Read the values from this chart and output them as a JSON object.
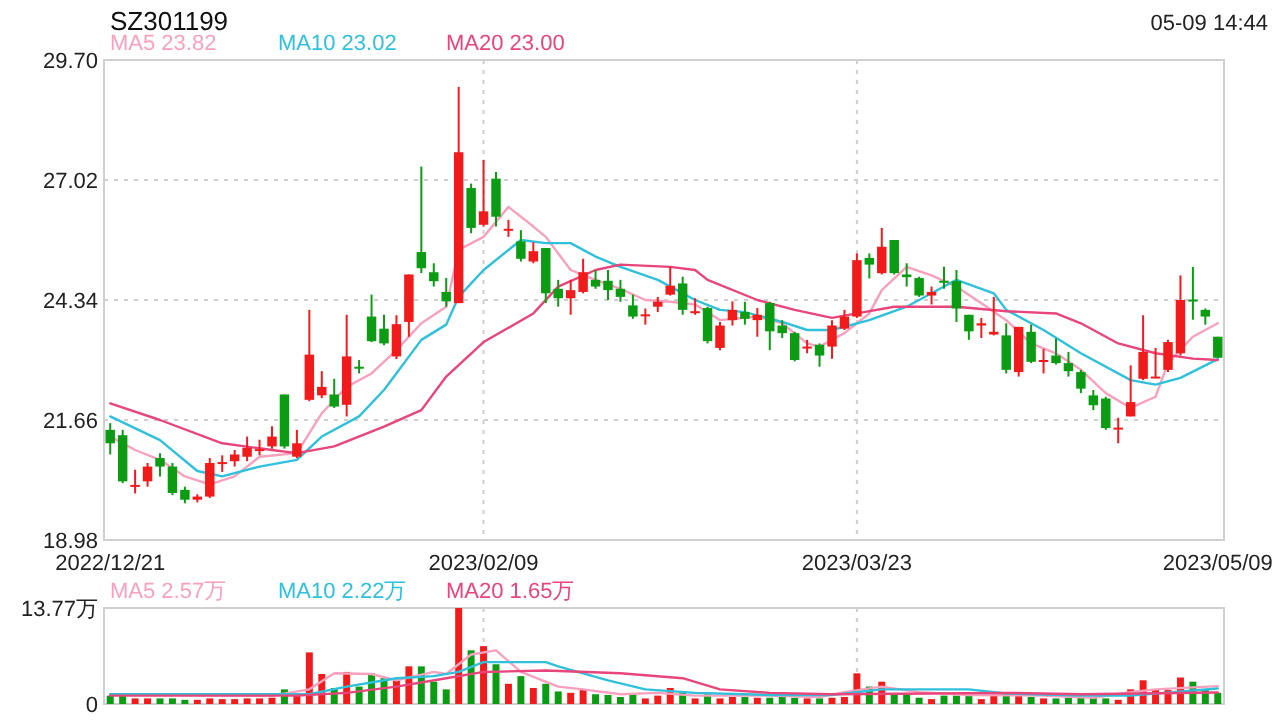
{
  "chart_data": [
    {
      "type": "candlestick",
      "title": "SZ301199",
      "annotations": [
        "05-09 14:44"
      ],
      "legend": "top",
      "grid": true,
      "categories": [
        "2022/12/21",
        null,
        null,
        null,
        null,
        null,
        null,
        null,
        null,
        null,
        null,
        null,
        null,
        null,
        null,
        null,
        null,
        null,
        null,
        null,
        null,
        null,
        null,
        null,
        null,
        null,
        null,
        null,
        null,
        null,
        "2023/02/09",
        null,
        null,
        null,
        null,
        null,
        null,
        null,
        null,
        null,
        null,
        null,
        null,
        null,
        null,
        null,
        null,
        null,
        null,
        null,
        null,
        null,
        null,
        null,
        null,
        null,
        null,
        null,
        null,
        null,
        "2023/03/23",
        null,
        null,
        null,
        null,
        null,
        null,
        null,
        null,
        null,
        null,
        null,
        null,
        null,
        null,
        null,
        null,
        null,
        null,
        null,
        null,
        null,
        null,
        null,
        null,
        null,
        null,
        null,
        null,
        "2023/05/09"
      ],
      "ylim": [
        18.98,
        29.7
      ],
      "yticks": [
        18.98,
        21.66,
        24.34,
        27.02,
        {
          "value": 29.7,
          "label": "29.70"
        }
      ],
      "ohlc": [
        [
          21.44,
          21.59,
          20.89,
          21.14
        ],
        [
          21.32,
          21.44,
          20.25,
          20.29
        ],
        [
          20.17,
          20.55,
          20.02,
          20.21
        ],
        [
          20.29,
          20.7,
          20.17,
          20.62
        ],
        [
          20.81,
          20.92,
          20.4,
          20.62
        ],
        [
          20.62,
          20.7,
          19.98,
          20.03
        ],
        [
          20.1,
          20.17,
          19.8,
          19.88
        ],
        [
          19.88,
          20.0,
          19.82,
          19.95
        ],
        [
          19.95,
          20.81,
          19.92,
          20.7
        ],
        [
          20.68,
          20.87,
          20.5,
          20.72
        ],
        [
          20.74,
          20.99,
          20.62,
          20.89
        ],
        [
          20.84,
          21.29,
          20.74,
          21.04
        ],
        [
          20.98,
          21.22,
          20.87,
          21.01
        ],
        [
          21.07,
          21.52,
          21.02,
          21.29
        ],
        [
          22.23,
          22.23,
          21.02,
          21.07
        ],
        [
          20.84,
          21.44,
          20.81,
          21.14
        ],
        [
          22.11,
          24.12,
          22.08,
          23.12
        ],
        [
          22.21,
          22.75,
          22.15,
          22.4
        ],
        [
          22.23,
          22.58,
          21.93,
          21.96
        ],
        [
          22.0,
          24.01,
          21.74,
          23.08
        ],
        [
          22.85,
          23.0,
          22.7,
          22.82
        ],
        [
          23.97,
          24.46,
          23.4,
          23.42
        ],
        [
          23.7,
          24.01,
          23.33,
          23.37
        ],
        [
          23.08,
          24.0,
          23.02,
          23.8
        ],
        [
          23.85,
          24.91,
          23.52,
          24.91
        ],
        [
          25.41,
          27.32,
          24.94,
          25.05
        ],
        [
          24.96,
          25.16,
          24.64,
          24.76
        ],
        [
          24.52,
          24.83,
          24.19,
          24.31
        ],
        [
          24.27,
          29.1,
          24.27,
          27.64
        ],
        [
          26.84,
          26.94,
          25.83,
          25.95
        ],
        [
          26.02,
          27.47,
          25.98,
          26.32
        ],
        [
          27.05,
          27.2,
          25.98,
          26.2
        ],
        [
          25.92,
          26.13,
          25.75,
          25.93
        ],
        [
          25.65,
          25.9,
          25.2,
          25.26
        ],
        [
          25.2,
          25.63,
          25.16,
          25.43
        ],
        [
          25.5,
          25.5,
          24.27,
          24.49
        ],
        [
          24.59,
          24.79,
          24.19,
          24.38
        ],
        [
          24.38,
          24.79,
          24.01,
          24.56
        ],
        [
          24.52,
          25.26,
          24.49,
          24.96
        ],
        [
          24.79,
          25.01,
          24.59,
          24.64
        ],
        [
          24.77,
          25.01,
          24.34,
          24.56
        ],
        [
          24.59,
          24.79,
          24.3,
          24.41
        ],
        [
          24.22,
          24.46,
          23.92,
          23.97
        ],
        [
          23.99,
          24.15,
          23.79,
          24.02
        ],
        [
          24.19,
          24.41,
          24.07,
          24.3
        ],
        [
          24.46,
          25.08,
          24.44,
          24.66
        ],
        [
          24.71,
          24.86,
          24.01,
          24.12
        ],
        [
          24.05,
          24.38,
          24.01,
          24.09
        ],
        [
          24.16,
          24.19,
          23.37,
          23.42
        ],
        [
          23.27,
          23.85,
          23.22,
          23.77
        ],
        [
          23.89,
          24.31,
          23.77,
          24.12
        ],
        [
          24.07,
          24.3,
          23.79,
          23.92
        ],
        [
          23.89,
          24.16,
          23.52,
          24.01
        ],
        [
          24.27,
          24.3,
          23.22,
          23.64
        ],
        [
          23.77,
          23.89,
          23.49,
          23.6
        ],
        [
          23.6,
          23.63,
          22.97,
          23.0
        ],
        [
          23.28,
          23.45,
          23.15,
          23.3
        ],
        [
          23.34,
          23.37,
          22.85,
          23.1
        ],
        [
          23.3,
          23.89,
          23.03,
          23.77
        ],
        [
          23.7,
          24.12,
          23.67,
          23.97
        ],
        [
          23.97,
          25.38,
          23.94,
          25.23
        ],
        [
          25.28,
          25.38,
          24.82,
          25.13
        ],
        [
          24.94,
          25.95,
          24.91,
          25.53
        ],
        [
          25.68,
          25.68,
          24.91,
          24.94
        ],
        [
          24.91,
          25.16,
          24.64,
          24.85
        ],
        [
          24.83,
          24.86,
          24.41,
          24.44
        ],
        [
          24.44,
          24.64,
          24.24,
          24.52
        ],
        [
          24.77,
          25.08,
          24.59,
          24.74
        ],
        [
          24.76,
          25.01,
          23.85,
          24.15
        ],
        [
          24.01,
          24.01,
          23.45,
          23.64
        ],
        [
          23.77,
          23.94,
          23.49,
          23.82
        ],
        [
          23.57,
          24.41,
          23.55,
          23.63
        ],
        [
          23.55,
          23.82,
          22.7,
          22.78
        ],
        [
          22.73,
          23.74,
          22.63,
          23.74
        ],
        [
          23.63,
          23.79,
          22.93,
          22.96
        ],
        [
          22.98,
          23.25,
          22.7,
          23.0
        ],
        [
          23.1,
          23.48,
          22.9,
          22.93
        ],
        [
          22.93,
          23.18,
          22.63,
          22.75
        ],
        [
          22.73,
          22.78,
          22.26,
          22.36
        ],
        [
          22.21,
          22.33,
          21.88,
          21.99
        ],
        [
          22.14,
          22.18,
          21.44,
          21.48
        ],
        [
          21.46,
          21.71,
          21.14,
          21.49
        ],
        [
          21.74,
          22.88,
          21.74,
          22.06
        ],
        [
          22.58,
          24.0,
          22.55,
          23.18
        ],
        [
          22.61,
          23.27,
          22.6,
          22.63
        ],
        [
          22.78,
          23.45,
          22.73,
          23.4
        ],
        [
          23.15,
          24.89,
          23.1,
          24.34
        ],
        [
          24.35,
          25.08,
          23.9,
          24.33
        ],
        [
          24.12,
          24.15,
          23.79,
          23.97
        ],
        [
          23.52,
          23.52,
          23.05,
          23.05
        ]
      ],
      "colors": [
        "#0b9c14",
        "#0b9c14",
        "#f21b1b",
        "#f21b1b",
        "#0b9c14",
        "#0b9c14",
        "#0b9c14",
        "#f21b1b",
        "#f21b1b",
        "#f21b1b",
        "#f21b1b",
        "#f21b1b",
        "#f21b1b",
        "#f21b1b",
        "#0b9c14",
        "#f21b1b",
        "#f21b1b",
        "#f21b1b",
        "#0b9c14",
        "#f21b1b",
        "#0b9c14",
        "#0b9c14",
        "#0b9c14",
        "#f21b1b",
        "#f21b1b",
        "#0b9c14",
        "#0b9c14",
        "#0b9c14",
        "#f21b1b",
        "#0b9c14",
        "#f21b1b",
        "#0b9c14",
        "#f21b1b",
        "#0b9c14",
        "#f21b1b",
        "#0b9c14",
        "#0b9c14",
        "#f21b1b",
        "#f21b1b",
        "#0b9c14",
        "#0b9c14",
        "#0b9c14",
        "#0b9c14",
        "#f21b1b",
        "#f21b1b",
        "#f21b1b",
        "#0b9c14",
        "#f21b1b",
        "#0b9c14",
        "#f21b1b",
        "#f21b1b",
        "#0b9c14",
        "#f21b1b",
        "#0b9c14",
        "#0b9c14",
        "#0b9c14",
        "#f21b1b",
        "#0b9c14",
        "#f21b1b",
        "#f21b1b",
        "#f21b1b",
        "#0b9c14",
        "#f21b1b",
        "#0b9c14",
        "#0b9c14",
        "#0b9c14",
        "#f21b1b",
        "#0b9c14",
        "#0b9c14",
        "#0b9c14",
        "#f21b1b",
        "#f21b1b",
        "#0b9c14",
        "#f21b1b",
        "#0b9c14",
        "#f21b1b",
        "#0b9c14",
        "#0b9c14",
        "#0b9c14",
        "#0b9c14",
        "#0b9c14",
        "#f21b1b",
        "#f21b1b",
        "#f21b1b",
        "#f21b1b",
        "#f21b1b",
        "#f21b1b",
        "#0b9c14",
        "#0b9c14",
        "#0b9c14"
      ],
      "series": [
        {
          "name": "MA5 23.82",
          "type": "line",
          "color": "#f7a1be",
          "values": [
            21.29,
            null,
            20.99,
            null,
            20.77,
            null,
            20.4,
            null,
            20.22,
            null,
            20.4,
            null,
            20.84,
            null,
            null,
            20.92,
            null,
            21.81,
            null,
            22.4,
            null,
            22.7,
            null,
            23.22,
            null,
            23.82,
            null,
            24.19,
            25.46,
            null,
            25.75,
            null,
            26.42,
            null,
            25.98,
            25.75,
            null,
            25.01,
            null,
            24.79,
            null,
            24.59,
            null,
            24.34,
            null,
            24.3,
            null,
            24.24,
            null,
            23.89,
            null,
            null,
            23.97,
            null,
            23.82,
            null,
            23.37,
            23.3,
            null,
            23.6,
            null,
            24.04,
            24.56,
            null,
            25.08,
            null,
            24.89,
            null,
            24.64,
            null,
            24.27,
            null,
            23.89,
            null,
            23.37,
            null,
            23.15,
            null,
            22.78,
            null,
            22.26,
            null,
            21.93,
            null,
            22.18,
            22.93,
            null,
            23.52,
            null,
            23.82
          ]
        },
        {
          "name": "MA10 23.02",
          "type": "line",
          "color": "#2fc0dc",
          "values": [
            21.74,
            null,
            null,
            null,
            21.21,
            null,
            null,
            20.52,
            null,
            20.4,
            null,
            null,
            20.62,
            null,
            null,
            20.77,
            null,
            21.29,
            null,
            null,
            21.74,
            null,
            22.33,
            null,
            null,
            23.45,
            null,
            23.79,
            24.41,
            null,
            25.01,
            null,
            null,
            25.68,
            null,
            25.61,
            null,
            25.61,
            null,
            25.31,
            null,
            25.08,
            null,
            null,
            24.79,
            null,
            null,
            24.34,
            null,
            24.12,
            null,
            24.07,
            null,
            null,
            23.85,
            null,
            23.67,
            null,
            23.67,
            null,
            null,
            23.89,
            null,
            null,
            24.19,
            null,
            null,
            24.64,
            24.79,
            null,
            null,
            24.49,
            24.12,
            null,
            null,
            23.67,
            null,
            null,
            23.15,
            null,
            null,
            null,
            22.55,
            null,
            22.45,
            null,
            22.6,
            null,
            null,
            23.02
          ]
        },
        {
          "name": "MA20 23.00",
          "type": "line",
          "color": "#e8457b",
          "values": [
            22.03,
            null,
            null,
            null,
            21.66,
            null,
            null,
            null,
            null,
            21.14,
            null,
            null,
            null,
            20.99,
            null,
            20.92,
            null,
            null,
            21.07,
            null,
            null,
            null,
            21.51,
            null,
            null,
            21.88,
            null,
            22.63,
            null,
            null,
            23.4,
            null,
            null,
            null,
            24.04,
            null,
            24.64,
            null,
            null,
            25.01,
            null,
            25.13,
            null,
            null,
            null,
            25.08,
            null,
            25.01,
            24.79,
            null,
            null,
            null,
            24.34,
            null,
            null,
            24.12,
            null,
            null,
            23.94,
            null,
            24.04,
            null,
            null,
            24.19,
            null,
            null,
            null,
            null,
            24.19,
            null,
            null,
            null,
            24.09,
            null,
            null,
            null,
            24.04,
            null,
            23.82,
            null,
            null,
            23.37,
            null,
            null,
            23.15,
            null,
            null,
            23.03,
            null,
            23.0
          ]
        }
      ]
    },
    {
      "type": "bar",
      "legend": "top",
      "grid": true,
      "tick_labels": "y",
      "categories": [
        "2022/12/21",
        null,
        null,
        null,
        null,
        null,
        null,
        null,
        null,
        null,
        null,
        null,
        null,
        null,
        null,
        null,
        null,
        null,
        null,
        null,
        null,
        null,
        null,
        null,
        null,
        null,
        null,
        null,
        null,
        null,
        "2023/02/09",
        null,
        null,
        null,
        null,
        null,
        null,
        null,
        null,
        null,
        null,
        null,
        null,
        null,
        null,
        null,
        null,
        null,
        null,
        null,
        null,
        null,
        null,
        null,
        null,
        null,
        null,
        null,
        null,
        null,
        "2023/03/23",
        null,
        null,
        null,
        null,
        null,
        null,
        null,
        null,
        null,
        null,
        null,
        null,
        null,
        null,
        null,
        null,
        null,
        null,
        null,
        null,
        null,
        null,
        null,
        null,
        null,
        null,
        null,
        null,
        "2023/05/09"
      ],
      "ylim": [
        0,
        13.77
      ],
      "yticks": [
        0,
        {
          "value": 13.77,
          "label": "13.77万"
        }
      ],
      "values": [
        1.2,
        1.2,
        0.8,
        0.8,
        0.8,
        0.8,
        0.6,
        0.6,
        0.8,
        0.7,
        0.7,
        0.8,
        0.8,
        0.9,
        2.1,
        1.2,
        7.4,
        4.3,
        2.3,
        4.6,
        2.5,
        4.4,
        3.7,
        3.4,
        5.4,
        5.4,
        3.2,
        2.1,
        13.77,
        7.7,
        8.3,
        5.7,
        2.9,
        4.0,
        2.3,
        2.9,
        1.8,
        1.6,
        2.1,
        1.4,
        1.3,
        1.0,
        1.4,
        0.8,
        1.2,
        2.3,
        1.8,
        0.8,
        1.4,
        0.8,
        1.0,
        1.0,
        0.9,
        0.9,
        1.0,
        0.9,
        0.8,
        0.8,
        0.9,
        1.0,
        4.4,
        2.5,
        3.2,
        1.5,
        1.4,
        0.9,
        0.7,
        1.2,
        1.2,
        1.2,
        0.7,
        1.2,
        1.7,
        1.2,
        1.0,
        0.8,
        0.8,
        0.9,
        0.9,
        0.9,
        0.8,
        0.6,
        2.1,
        3.4,
        2.1,
        2.0,
        3.8,
        3.2,
        2.1,
        1.6
      ],
      "colors": [
        "#0b9c14",
        "#0b9c14",
        "#f21b1b",
        "#f21b1b",
        "#0b9c14",
        "#0b9c14",
        "#0b9c14",
        "#f21b1b",
        "#f21b1b",
        "#f21b1b",
        "#f21b1b",
        "#f21b1b",
        "#f21b1b",
        "#f21b1b",
        "#0b9c14",
        "#f21b1b",
        "#f21b1b",
        "#f21b1b",
        "#0b9c14",
        "#f21b1b",
        "#0b9c14",
        "#0b9c14",
        "#0b9c14",
        "#f21b1b",
        "#f21b1b",
        "#0b9c14",
        "#0b9c14",
        "#0b9c14",
        "#f21b1b",
        "#0b9c14",
        "#f21b1b",
        "#0b9c14",
        "#f21b1b",
        "#0b9c14",
        "#f21b1b",
        "#0b9c14",
        "#0b9c14",
        "#f21b1b",
        "#f21b1b",
        "#0b9c14",
        "#0b9c14",
        "#0b9c14",
        "#0b9c14",
        "#f21b1b",
        "#f21b1b",
        "#f21b1b",
        "#0b9c14",
        "#f21b1b",
        "#0b9c14",
        "#f21b1b",
        "#f21b1b",
        "#0b9c14",
        "#f21b1b",
        "#0b9c14",
        "#0b9c14",
        "#0b9c14",
        "#f21b1b",
        "#0b9c14",
        "#f21b1b",
        "#f21b1b",
        "#f21b1b",
        "#0b9c14",
        "#f21b1b",
        "#0b9c14",
        "#0b9c14",
        "#0b9c14",
        "#f21b1b",
        "#0b9c14",
        "#0b9c14",
        "#0b9c14",
        "#f21b1b",
        "#f21b1b",
        "#0b9c14",
        "#f21b1b",
        "#0b9c14",
        "#f21b1b",
        "#0b9c14",
        "#0b9c14",
        "#0b9c14",
        "#0b9c14",
        "#0b9c14",
        "#f21b1b",
        "#f21b1b",
        "#f21b1b",
        "#f21b1b",
        "#f21b1b",
        "#f21b1b",
        "#0b9c14",
        "#0b9c14",
        "#0b9c14"
      ],
      "series": [
        {
          "name": "MA5 2.57万",
          "type": "line",
          "color": "#f7a1be",
          "values": [
            1.4,
            null,
            null,
            null,
            null,
            null,
            null,
            null,
            null,
            null,
            null,
            null,
            null,
            1.2,
            null,
            null,
            2.1,
            null,
            4.4,
            null,
            null,
            4.3,
            null,
            3.4,
            null,
            null,
            4.6,
            4.3,
            null,
            7.1,
            null,
            7.7,
            null,
            4.6,
            null,
            null,
            2.5,
            null,
            2.1,
            null,
            null,
            1.4,
            null,
            null,
            1.6,
            null,
            null,
            1.2,
            null,
            null,
            null,
            null,
            null,
            1.2,
            null,
            null,
            null,
            1.0,
            null,
            1.7,
            null,
            null,
            2.5,
            null,
            null,
            1.7,
            null,
            null,
            null,
            1.3,
            null,
            null,
            null,
            null,
            null,
            1.2,
            null,
            null,
            null,
            0.9,
            null,
            null,
            1.7,
            null,
            2.1,
            null,
            null,
            null,
            null,
            2.57
          ]
        },
        {
          "name": "MA10 2.22万",
          "type": "line",
          "color": "#2fc0dc",
          "values": [
            1.4,
            null,
            null,
            null,
            null,
            null,
            null,
            null,
            null,
            null,
            null,
            null,
            null,
            null,
            null,
            null,
            1.4,
            null,
            null,
            2.5,
            null,
            null,
            null,
            3.7,
            null,
            null,
            4.0,
            null,
            4.6,
            null,
            6.0,
            null,
            null,
            null,
            null,
            6.0,
            5.4,
            null,
            null,
            null,
            3.4,
            null,
            null,
            2.1,
            null,
            null,
            null,
            1.6,
            null,
            null,
            null,
            null,
            null,
            1.3,
            null,
            null,
            null,
            null,
            1.3,
            null,
            null,
            null,
            2.1,
            null,
            null,
            null,
            null,
            null,
            null,
            2.1,
            null,
            null,
            1.5,
            null,
            null,
            null,
            null,
            null,
            1.2,
            null,
            null,
            null,
            1.2,
            null,
            null,
            null,
            null,
            null,
            null,
            2.22
          ]
        },
        {
          "name": "MA20 1.65万",
          "type": "line",
          "color": "#e8457b",
          "values": [
            1.2,
            null,
            null,
            null,
            null,
            null,
            null,
            null,
            null,
            null,
            null,
            null,
            null,
            null,
            null,
            1.2,
            null,
            null,
            null,
            1.6,
            null,
            null,
            null,
            2.5,
            null,
            null,
            null,
            3.7,
            null,
            null,
            4.6,
            null,
            null,
            null,
            null,
            4.8,
            null,
            null,
            null,
            null,
            null,
            4.4,
            null,
            null,
            null,
            null,
            3.7,
            null,
            null,
            2.1,
            null,
            null,
            null,
            1.6,
            null,
            null,
            null,
            null,
            1.4,
            null,
            null,
            null,
            null,
            null,
            null,
            null,
            1.5,
            null,
            null,
            null,
            null,
            null,
            1.6,
            null,
            null,
            null,
            null,
            null,
            1.4,
            null,
            null,
            null,
            null,
            null,
            null,
            null,
            null,
            null,
            null,
            1.65
          ]
        }
      ]
    }
  ]
}
